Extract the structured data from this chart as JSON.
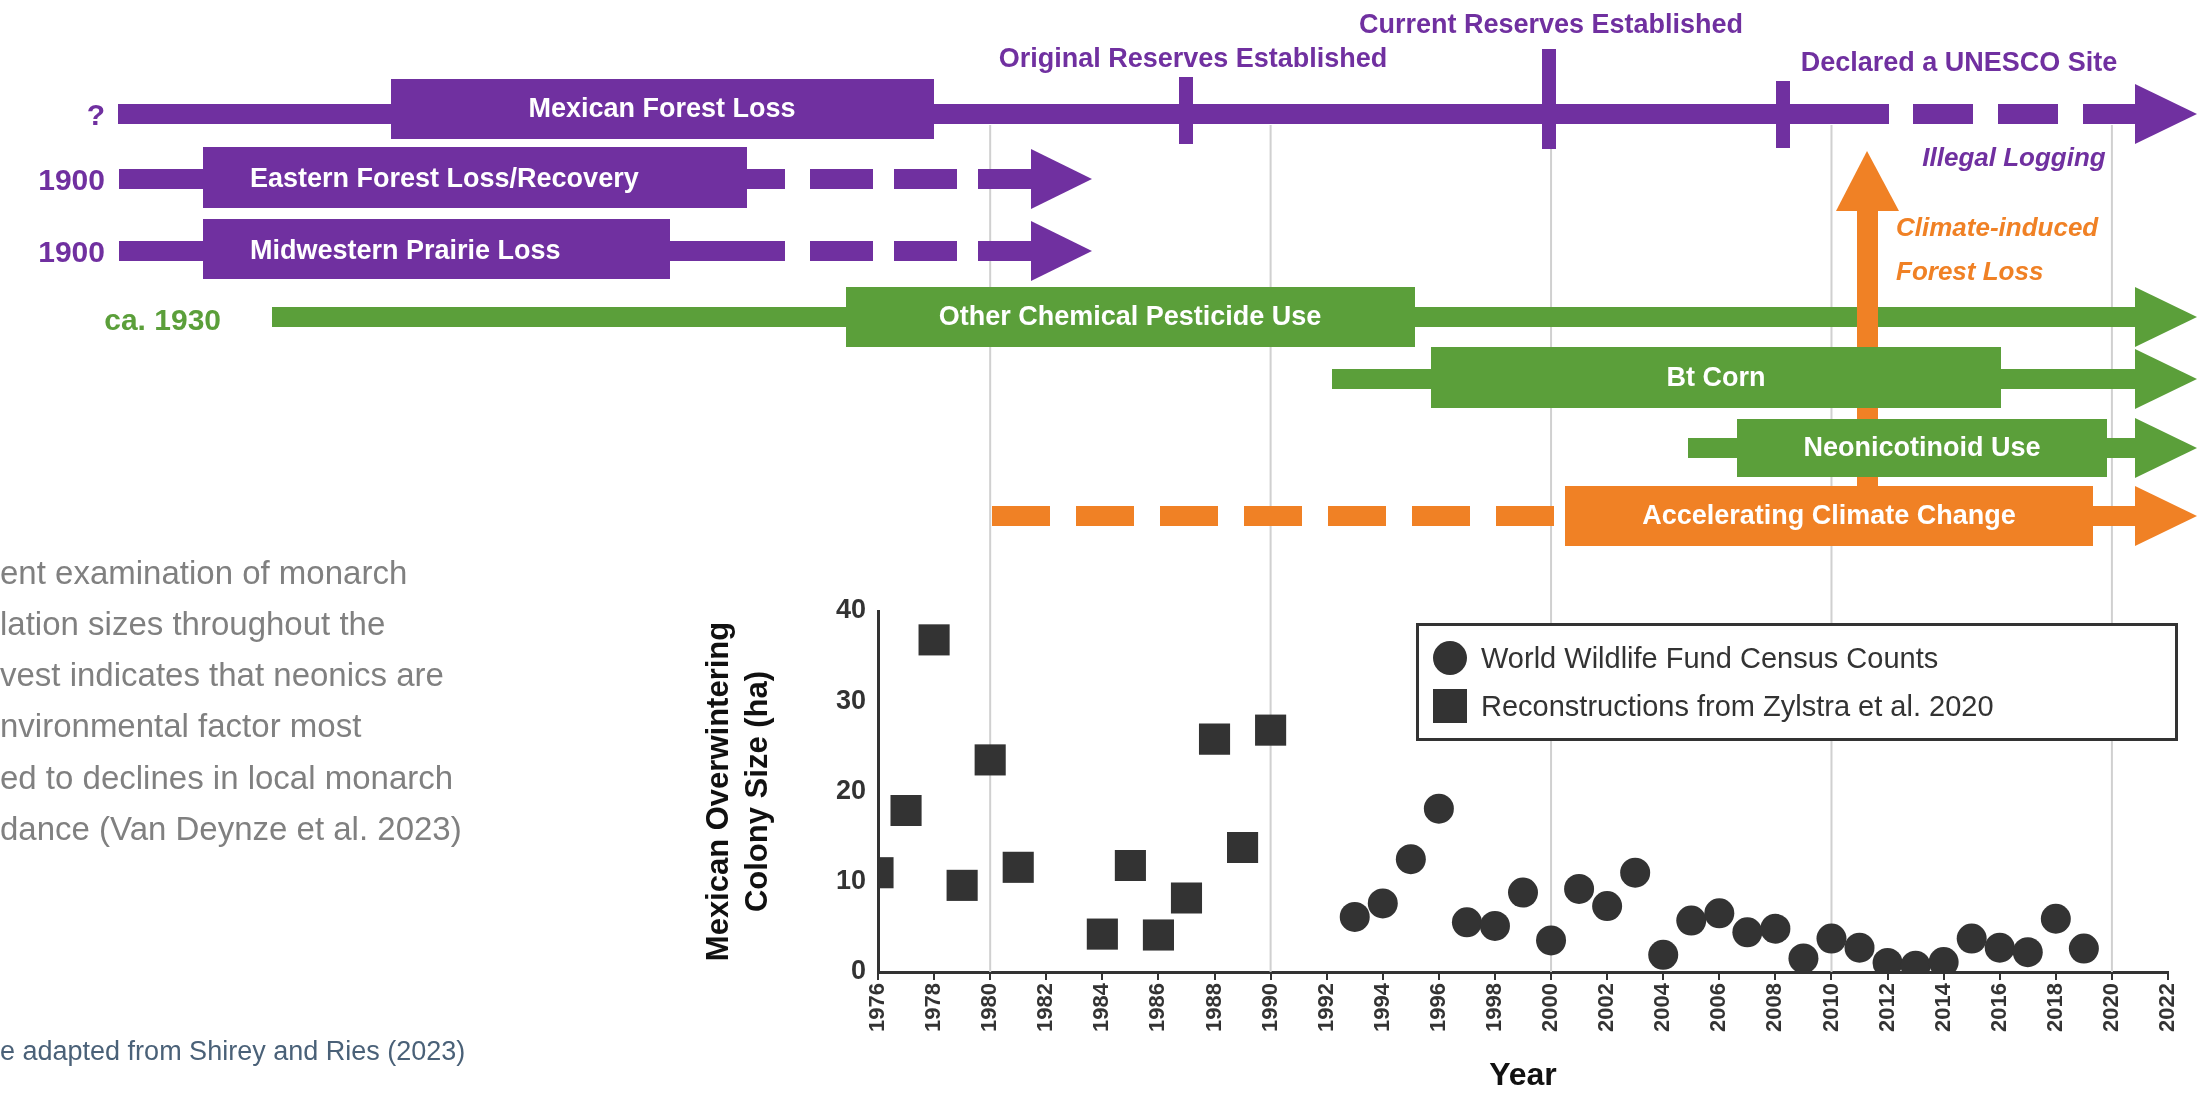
{
  "chart_data": {
    "type": "scatter",
    "xlabel": "Year",
    "ylabel": "Mexican Overwintering\nColony Size (ha)",
    "xlim": [
      1976,
      2022
    ],
    "xticks": [
      1976,
      1978,
      1980,
      1982,
      1984,
      1986,
      1988,
      1990,
      1992,
      1994,
      1996,
      1998,
      2000,
      2002,
      2004,
      2006,
      2008,
      2010,
      2012,
      2014,
      2016,
      2018,
      2020,
      2022
    ],
    "ylim": [
      0,
      40
    ],
    "yticks": [
      0,
      10,
      20,
      30,
      40
    ],
    "grid": false,
    "legend": "top right",
    "ref_lines": [
      {
        "axis": "x",
        "value": 1980,
        "color": "#d0d0d0"
      },
      {
        "axis": "x",
        "value": 1990,
        "color": "#d0d0d0"
      },
      {
        "axis": "x",
        "value": 2000,
        "color": "#d0d0d0"
      },
      {
        "axis": "x",
        "value": 2010,
        "color": "#d0d0d0"
      },
      {
        "axis": "x",
        "value": 2020,
        "color": "#d0d0d0"
      }
    ],
    "series": [
      {
        "name": "World Wildlife Fund Census Counts",
        "color": "#333333",
        "marker": "circle",
        "x": [
          1993,
          1994,
          1995,
          1996,
          1997,
          1998,
          1999,
          2000,
          2001,
          2002,
          2003,
          2004,
          2005,
          2006,
          2007,
          2008,
          2009,
          2010,
          2011,
          2012,
          2013,
          2014,
          2015,
          2016,
          2017,
          2018,
          2019
        ],
        "values": [
          6.1,
          7.6,
          12.5,
          18.1,
          5.5,
          5.1,
          8.8,
          3.5,
          9.2,
          7.3,
          11.0,
          1.9,
          5.7,
          6.5,
          4.4,
          4.8,
          1.5,
          3.7,
          2.7,
          1.0,
          0.7,
          1.1,
          3.7,
          2.7,
          2.2,
          5.9,
          2.6
        ]
      },
      {
        "name": "Reconstructions from Zylstra et al. 2020",
        "color": "#333333",
        "marker": "square",
        "x": [
          1976,
          1977,
          1978,
          1979,
          1980,
          1981,
          1984,
          1985,
          1986,
          1987,
          1988,
          1989,
          1990
        ],
        "values": [
          11.0,
          17.9,
          36.8,
          9.6,
          23.5,
          11.6,
          4.2,
          11.8,
          4.1,
          8.2,
          25.8,
          13.8,
          26.8
        ]
      }
    ],
    "annotations": [
      "?",
      "Mexican Forest Loss",
      "Original Reserves Established",
      "Current Reserves Established",
      "Declared a UNESCO Site",
      "Illegal Logging",
      "1900",
      "Eastern Forest Loss/Recovery",
      "1900",
      "Midwestern Prairie Loss",
      "Climate-induced",
      "Forest Loss",
      "ca. 1930",
      "Other Chemical Pesticide Use",
      "Bt Corn",
      "Neonicotinoid Use",
      "Accelerating Climate Change",
      "ent examination of monarch",
      "lation sizes throughout the",
      "vest indicates that neonics are",
      "nvironmental factor most",
      "ed to declines in local monarch",
      "dance (Van Deynze et al. 2023)",
      "e adapted from Shirey and Ries (2023)"
    ]
  }
}
